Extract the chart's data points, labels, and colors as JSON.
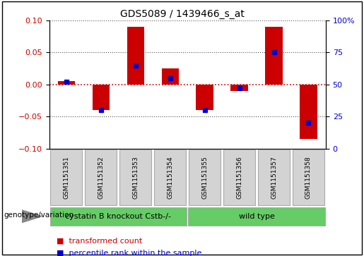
{
  "title": "GDS5089 / 1439466_s_at",
  "samples": [
    "GSM1151351",
    "GSM1151352",
    "GSM1151353",
    "GSM1151354",
    "GSM1151355",
    "GSM1151356",
    "GSM1151357",
    "GSM1151358"
  ],
  "red_values": [
    0.005,
    -0.04,
    0.09,
    0.025,
    -0.04,
    -0.01,
    0.09,
    -0.085
  ],
  "blue_values": [
    52,
    30,
    65,
    55,
    30,
    47,
    75,
    20
  ],
  "ylim": [
    -0.1,
    0.1
  ],
  "y2lim": [
    0,
    100
  ],
  "yticks_left": [
    -0.1,
    -0.05,
    0.0,
    0.05,
    0.1
  ],
  "yticks_right": [
    0,
    25,
    50,
    75,
    100
  ],
  "y0_dotted_color": "#cc0000",
  "grid_color": "#555555",
  "bar_color": "#cc0000",
  "blue_color": "#0000cc",
  "group1_label": "cystatin B knockout Cstb-/-",
  "group2_label": "wild type",
  "group1_count": 4,
  "group2_count": 4,
  "bottom_label": "genotype/variation",
  "legend1": "transformed count",
  "legend2": "percentile rank within the sample",
  "bar_width": 0.5,
  "blue_marker_size": 5,
  "sample_name_fontsize": 6.5,
  "group_label_fontsize": 8,
  "legend_fontsize": 8,
  "title_fontsize": 10,
  "bg_color": "#ffffff",
  "cell_color": "#d3d3d3",
  "group_color": "#66cc66",
  "cell_border_color": "#aaaaaa"
}
